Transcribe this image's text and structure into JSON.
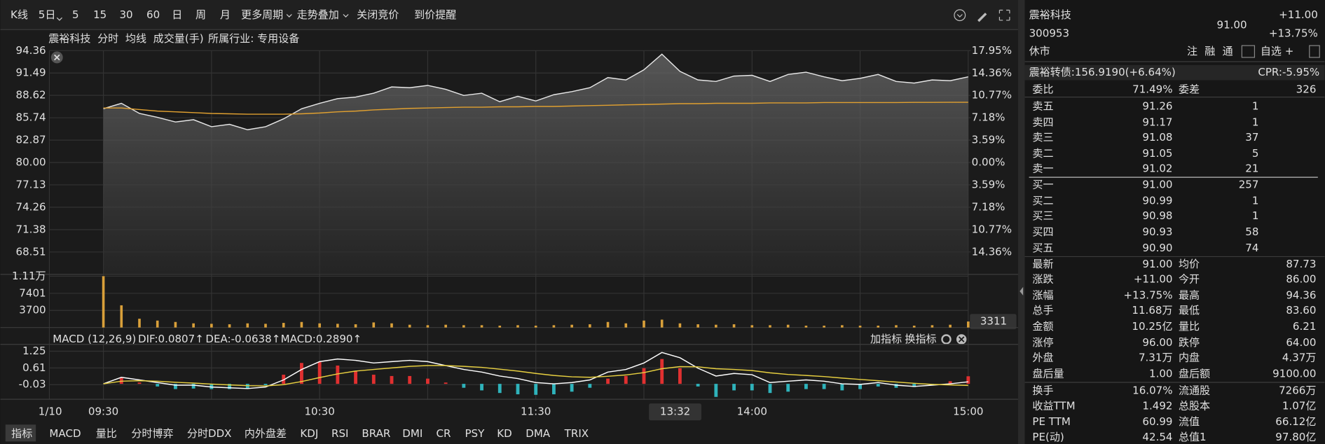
{
  "toolbar": {
    "items": [
      "K线",
      "5日",
      "5",
      "15",
      "30",
      "60",
      "日",
      "周",
      "月",
      "更多周期",
      "走势叠加",
      "关闭竞价",
      "到价提醒"
    ]
  },
  "info_bar": {
    "name": "震裕科技",
    "tabs": [
      "分时",
      "均线",
      "成交量(手)"
    ],
    "industry": "所属行业: 专用设备"
  },
  "intraday": {
    "type": "line",
    "date_label": "1/10",
    "x": [
      "09:30",
      null,
      null,
      null,
      null,
      null,
      null,
      null,
      null,
      null,
      null,
      null,
      "10:30",
      null,
      null,
      null,
      null,
      null,
      null,
      null,
      null,
      null,
      null,
      null,
      "11:30",
      null,
      null,
      null,
      null,
      null,
      null,
      null,
      null,
      null,
      null,
      null,
      "14:00",
      null,
      null,
      null,
      null,
      null,
      null,
      null,
      null,
      null,
      null,
      null,
      "15:00"
    ],
    "series": [
      {
        "color": "#e6e6e6",
        "values": [
          86.9,
          87.6,
          86.3,
          85.8,
          85.2,
          85.5,
          84.6,
          84.9,
          84.2,
          84.6,
          85.6,
          86.9,
          87.6,
          88.2,
          88.4,
          88.9,
          89.7,
          89.6,
          89.9,
          89.4,
          88.6,
          88.9,
          87.8,
          88.5,
          87.9,
          88.7,
          89.1,
          89.6,
          90.9,
          90.6,
          91.9,
          93.9,
          91.7,
          90.6,
          90.4,
          91.1,
          91.2,
          90.4,
          91.3,
          91.6,
          91.0,
          90.5,
          90.8,
          91.3,
          90.4,
          90.2,
          90.6,
          90.5,
          91.0
        ]
      },
      {
        "color": "#e0a030",
        "values": [
          87.0,
          87.0,
          86.8,
          86.6,
          86.5,
          86.4,
          86.3,
          86.25,
          86.2,
          86.2,
          86.2,
          86.25,
          86.35,
          86.5,
          86.6,
          86.75,
          86.85,
          86.95,
          87.0,
          87.05,
          87.1,
          87.1,
          87.15,
          87.15,
          87.2,
          87.2,
          87.25,
          87.3,
          87.35,
          87.4,
          87.45,
          87.5,
          87.55,
          87.55,
          87.6,
          87.6,
          87.6,
          87.65,
          87.65,
          87.65,
          87.7,
          87.7,
          87.7,
          87.7,
          87.7,
          87.72,
          87.72,
          87.73,
          87.73
        ]
      }
    ],
    "ylim": [
      65.64,
      94.36
    ],
    "yticks": [
      94.36,
      91.49,
      88.62,
      85.74,
      82.87,
      {
        "value": 80,
        "label": "80.00"
      },
      77.13,
      74.26,
      71.38,
      68.51
    ],
    "y2lim": [
      -17.95,
      17.95
    ],
    "y2ticks": [
      {
        "value": 17.95,
        "label": "17.95%"
      },
      {
        "value": 14.36,
        "label": "14.36%"
      },
      {
        "value": 10.77,
        "label": "10.77%"
      },
      {
        "value": 7.18,
        "label": "7.18%"
      },
      {
        "value": 3.59,
        "label": "3.59%"
      },
      {
        "value": 0,
        "label": "0.00%"
      },
      {
        "value": -3.59,
        "label": "3.59%"
      },
      {
        "value": -7.18,
        "label": "7.18%"
      },
      {
        "value": -10.77,
        "label": "10.77%"
      },
      {
        "value": -14.36,
        "label": "14.36%"
      }
    ],
    "up_color": "#ff4a4a",
    "down_color": "#3ccf3c",
    "flat_color": "#e0e0e0",
    "grid": true,
    "cursor_time": "13:32"
  },
  "volume": {
    "type": "bar",
    "color": "#d9a03a",
    "values": [
      11100,
      4800,
      1900,
      1500,
      1200,
      900,
      800,
      700,
      900,
      800,
      1000,
      1200,
      900,
      800,
      700,
      1100,
      900,
      600,
      500,
      600,
      500,
      500,
      400,
      500,
      400,
      500,
      600,
      700,
      1200,
      900,
      1500,
      1700,
      900,
      700,
      600,
      700,
      500,
      500,
      600,
      400,
      400,
      500,
      400,
      400,
      500,
      400,
      500,
      600,
      1300
    ],
    "ylim": [
      0,
      11500
    ],
    "yticks": [
      {
        "value": 11100,
        "label": "1.11万"
      },
      7401,
      3700
    ],
    "cursor_value": 3311
  },
  "macd": {
    "type": "macd",
    "header": {
      "title": "MACD (12,26,9)",
      "dif": "DIF:0.0807↑",
      "dea": "DEA:-0.0638↑",
      "macd": "MACD:0.2890↑"
    },
    "actions": [
      "加指标",
      "换指标"
    ],
    "series": [
      {
        "color": "#ffffff",
        "values": [
          0,
          0.25,
          0.15,
          0.05,
          -0.05,
          -0.05,
          -0.12,
          -0.15,
          -0.18,
          -0.12,
          0.15,
          0.55,
          0.85,
          0.95,
          0.9,
          0.8,
          0.85,
          0.9,
          0.85,
          0.7,
          0.55,
          0.45,
          0.3,
          0.2,
          0.05,
          0,
          0.05,
          0.15,
          0.45,
          0.55,
          0.8,
          1.2,
          1.0,
          0.6,
          0.3,
          0.4,
          0.35,
          0.05,
          0.1,
          0.15,
          0.1,
          0,
          -0.02,
          0.05,
          -0.05,
          -0.1,
          -0.05,
          0,
          0.08
        ]
      },
      {
        "color": "#e8d040",
        "values": [
          0,
          0.1,
          0.12,
          0.1,
          0.06,
          0.03,
          -0.01,
          -0.04,
          -0.07,
          -0.08,
          -0.03,
          0.09,
          0.24,
          0.38,
          0.49,
          0.55,
          0.61,
          0.67,
          0.7,
          0.7,
          0.67,
          0.63,
          0.56,
          0.49,
          0.4,
          0.32,
          0.27,
          0.25,
          0.29,
          0.34,
          0.43,
          0.58,
          0.66,
          0.65,
          0.58,
          0.55,
          0.51,
          0.42,
          0.36,
          0.32,
          0.28,
          0.22,
          0.17,
          0.12,
          0.07,
          0.02,
          -0.02,
          -0.04,
          -0.06
        ]
      }
    ],
    "histogram": [
      0,
      0.25,
      0.05,
      -0.1,
      -0.2,
      -0.18,
      -0.2,
      -0.2,
      -0.18,
      -0.05,
      0.35,
      0.8,
      0.85,
      0.7,
      0.5,
      0.35,
      0.3,
      0.3,
      0.2,
      0.05,
      -0.15,
      -0.25,
      -0.35,
      -0.4,
      -0.42,
      -0.4,
      -0.3,
      -0.15,
      0.2,
      0.3,
      0.6,
      0.95,
      0.6,
      -0.1,
      -0.5,
      -0.25,
      -0.25,
      -0.35,
      -0.3,
      -0.2,
      -0.2,
      -0.25,
      -0.2,
      -0.1,
      -0.15,
      -0.12,
      -0.05,
      0.1,
      0.29
    ],
    "up_color": "#e03030",
    "down_color": "#2fb3bb",
    "ylim": [
      -0.59,
      1.51
    ],
    "yticks": [
      1.25,
      0.61,
      -0.03
    ]
  },
  "indicator_tabs": [
    "指标",
    "MACD",
    "量比",
    "分时博弈",
    "分时DDX",
    "内外盘差",
    "KDJ",
    "RSI",
    "BRAR",
    "DMI",
    "CR",
    "PSY",
    "KD",
    "DMA",
    "TRIX"
  ],
  "quote": {
    "name": "震裕科技",
    "code": "300953",
    "price": "91.00",
    "change": "+11.00",
    "change_pct": "+13.75%",
    "status": "休市",
    "buttons": [
      "注",
      "融",
      "通",
      "自选 +"
    ],
    "bond": "震裕转债:156.9190(+6.64%)",
    "cpr": "CPR:-5.95%",
    "ratio": [
      "委比",
      "71.49%",
      "委差",
      "326"
    ],
    "asks": [
      [
        "卖五",
        "91.26",
        "1"
      ],
      [
        "卖四",
        "91.17",
        "1"
      ],
      [
        "卖三",
        "91.08",
        "37"
      ],
      [
        "卖二",
        "91.05",
        "5"
      ],
      [
        "卖一",
        "91.02",
        "21"
      ]
    ],
    "bids": [
      [
        "买一",
        "91.00",
        "257"
      ],
      [
        "买二",
        "90.99",
        "1"
      ],
      [
        "买三",
        "90.98",
        "1"
      ],
      [
        "买四",
        "90.93",
        "58"
      ],
      [
        "买五",
        "90.90",
        "74"
      ]
    ],
    "stats": [
      [
        "最新",
        "91.00",
        "均价",
        "87.73"
      ],
      [
        "涨跌",
        "+11.00",
        "今开",
        "86.00"
      ],
      [
        "涨幅",
        "+13.75%",
        "最高",
        "94.36"
      ],
      [
        "总手",
        "11.68万",
        "最低",
        "83.60"
      ],
      [
        "金额",
        "10.25亿",
        "量比",
        "6.21"
      ],
      [
        "涨停",
        "96.00",
        "跌停",
        "64.00"
      ],
      [
        "外盘",
        "7.31万",
        "内盘",
        "4.37万"
      ],
      [
        "盘后量",
        "1.00",
        "盘后额",
        "9100.00"
      ],
      [
        "换手",
        "16.07%",
        "流通股",
        "7266万"
      ],
      [
        "收益TTM",
        "1.492",
        "总股本",
        "1.07亿"
      ],
      [
        "PE TTM",
        "60.99",
        "流值",
        "66.12亿"
      ],
      [
        "PE(动)",
        "42.54",
        "总值1",
        "97.80亿"
      ]
    ],
    "stats_colors": [
      [
        "#ff4a4a",
        "#ff4a4a"
      ],
      [
        "#ff4a4a",
        "#ff4a4a"
      ],
      [
        "#ff4a4a",
        "#ff4a4a"
      ],
      [
        "#e0e0e0",
        "#ff4a4a"
      ],
      [
        "#39c5d6",
        "#e0e0e0"
      ],
      [
        "#ff4a4a",
        "#3ccf3c"
      ],
      [
        "#ff4a4a",
        "#3ccf3c"
      ],
      [
        "#e0e0e0",
        "#39c5d6"
      ],
      [
        "#e0e0e0",
        "#e0e0e0"
      ],
      [
        "#e0e0e0",
        "#e0e0e0"
      ],
      [
        "#e0e0e0",
        "#e0e0e0"
      ],
      [
        "#e0e0e0",
        "#e0e0e0"
      ]
    ]
  }
}
